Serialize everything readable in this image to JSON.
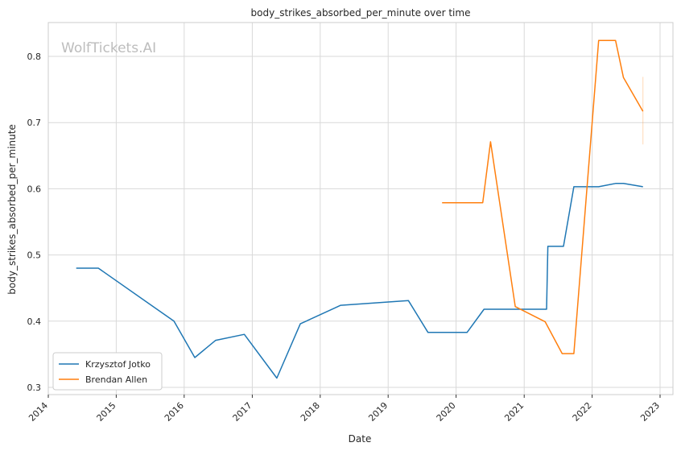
{
  "chart_data": {
    "type": "line",
    "title": "body_strikes_absorbed_per_minute over time",
    "xlabel": "Date",
    "ylabel": "body_strikes_absorbed_per_minute",
    "watermark": "WolfTickets.AI",
    "x_ticks": [
      "2014",
      "2015",
      "2016",
      "2017",
      "2018",
      "2019",
      "2020",
      "2021",
      "2022",
      "2023"
    ],
    "y_ticks": [
      "0.3",
      "0.4",
      "0.5",
      "0.6",
      "0.7",
      "0.8"
    ],
    "xlim": [
      "2014-01-01",
      "2023-01-01"
    ],
    "ylim": [
      0.29,
      0.85
    ],
    "grid": true,
    "legend_position": "lower-left",
    "series": [
      {
        "name": "Krzysztof Jotko",
        "color": "#1f77b4",
        "points": [
          [
            "2014-05-31",
            0.48
          ],
          [
            "2014-09-27",
            0.48
          ],
          [
            "2015-11-07",
            0.4
          ],
          [
            "2016-02-27",
            0.345
          ],
          [
            "2016-06-18",
            0.371
          ],
          [
            "2016-11-19",
            0.38
          ],
          [
            "2017-05-13",
            0.314
          ],
          [
            "2017-09-16",
            0.396
          ],
          [
            "2018-04-21",
            0.424
          ],
          [
            "2019-04-20",
            0.431
          ],
          [
            "2019-08-03",
            0.383
          ],
          [
            "2020-02-29",
            0.383
          ],
          [
            "2020-05-30",
            0.418
          ],
          [
            "2021-05-01",
            0.418
          ],
          [
            "2021-05-08",
            0.513
          ],
          [
            "2021-07-31",
            0.513
          ],
          [
            "2021-09-25",
            0.603
          ],
          [
            "2022-02-05",
            0.603
          ],
          [
            "2022-05-07",
            0.608
          ],
          [
            "2022-06-18",
            0.608
          ],
          [
            "2022-10-01",
            0.603
          ]
        ]
      },
      {
        "name": "Brendan Allen",
        "color": "#ff7f0e",
        "points": [
          [
            "2019-10-18",
            0.579
          ],
          [
            "2020-05-23",
            0.579
          ],
          [
            "2020-07-04",
            0.671
          ],
          [
            "2020-11-14",
            0.422
          ],
          [
            "2021-04-24",
            0.399
          ],
          [
            "2021-07-24",
            0.351
          ],
          [
            "2021-09-25",
            0.351
          ],
          [
            "2022-02-05",
            0.824
          ],
          [
            "2022-05-07",
            0.824
          ],
          [
            "2022-06-18",
            0.768
          ],
          [
            "2022-10-01",
            0.717
          ]
        ],
        "range_marker": {
          "x": "2022-10-01",
          "low": 0.667,
          "high": 0.769
        }
      }
    ]
  }
}
